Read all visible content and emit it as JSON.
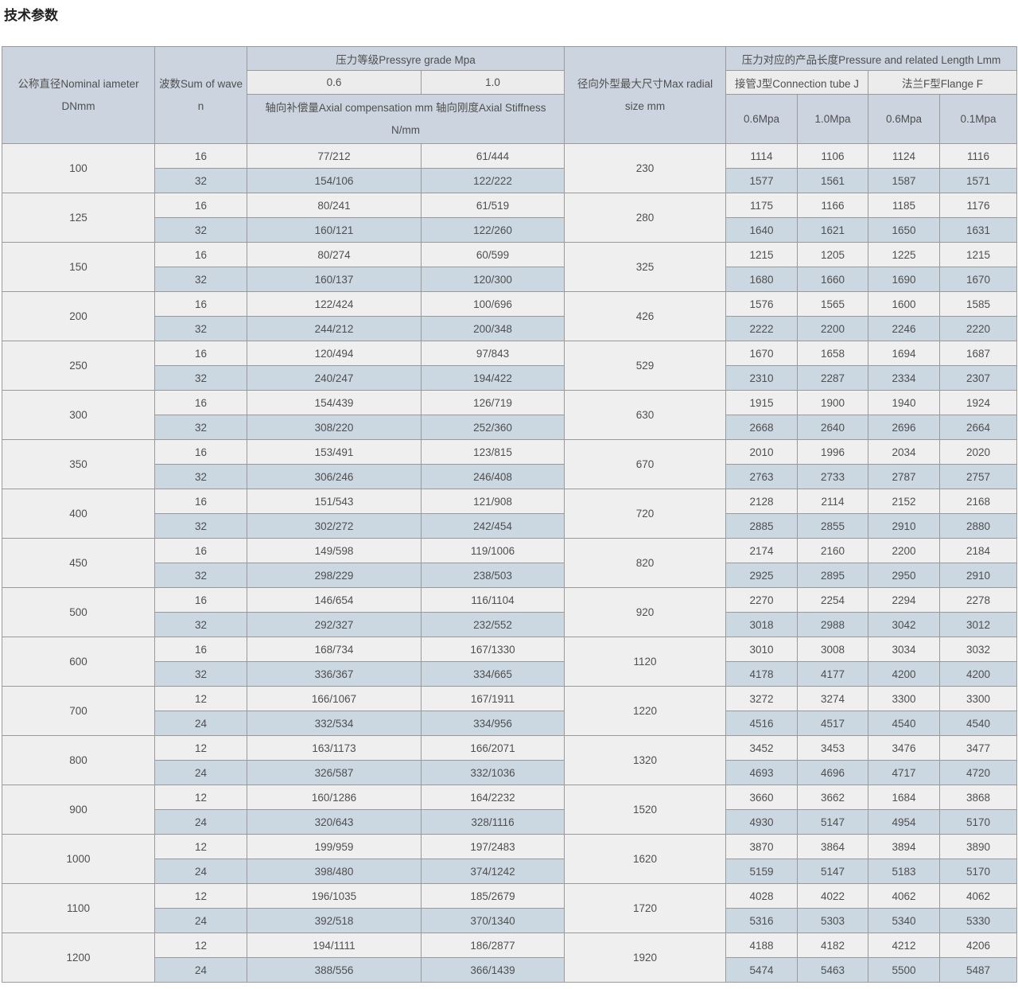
{
  "page_title": "技术参数",
  "colors": {
    "header_blue": "#ccd5df",
    "subheader_light": "#ececed",
    "row_light": "#efefef",
    "row_blue": "#cbd8e2",
    "border_gray": "#9a9a9a",
    "text_gray": "#4f4f4f",
    "title_dark": "#1f1f1f",
    "page_bg": "#ffffff"
  },
  "table": {
    "header": {
      "nominal_diameter": {
        "line1": "公称直径Nominal iameter",
        "line2": "DNmm"
      },
      "wave_count": {
        "line1": "波数Sum of wave",
        "line2": "n"
      },
      "pressure_group": {
        "title": "压力等级Pressyre grade Mpa",
        "sub_cols": [
          "0.6",
          "1.0"
        ],
        "note_line1": "轴向补偿量Axial compensation mm 轴向刚度Axial Stiffness",
        "note_line2": "N/mm"
      },
      "max_radial": {
        "line1": "径向外型最大尺寸Max radial",
        "line2": "size mm"
      },
      "length_group": {
        "title": "压力对应的产品长度Pressure and related Length Lmm",
        "sub_groups": [
          "接管J型Connection tube J",
          "法兰F型Flange F"
        ],
        "sub_cols": [
          "0.6Mpa",
          "1.0Mpa",
          "0.6Mpa",
          "0.1Mpa"
        ]
      }
    },
    "rows": [
      {
        "dn": "100",
        "radial": "230",
        "sub": [
          {
            "waves": "16",
            "axial": [
              "77/212",
              "61/444"
            ],
            "lengths": [
              "1114",
              "1106",
              "1124",
              "1116"
            ]
          },
          {
            "waves": "32",
            "axial": [
              "154/106",
              "122/222"
            ],
            "lengths": [
              "1577",
              "1561",
              "1587",
              "1571"
            ]
          }
        ]
      },
      {
        "dn": "125",
        "radial": "280",
        "sub": [
          {
            "waves": "16",
            "axial": [
              "80/241",
              "61/519"
            ],
            "lengths": [
              "1175",
              "1166",
              "1185",
              "1176"
            ]
          },
          {
            "waves": "32",
            "axial": [
              "160/121",
              "122/260"
            ],
            "lengths": [
              "1640",
              "1621",
              "1650",
              "1631"
            ]
          }
        ]
      },
      {
        "dn": "150",
        "radial": "325",
        "sub": [
          {
            "waves": "16",
            "axial": [
              "80/274",
              "60/599"
            ],
            "lengths": [
              "1215",
              "1205",
              "1225",
              "1215"
            ]
          },
          {
            "waves": "32",
            "axial": [
              "160/137",
              "120/300"
            ],
            "lengths": [
              "1680",
              "1660",
              "1690",
              "1670"
            ]
          }
        ]
      },
      {
        "dn": "200",
        "radial": "426",
        "sub": [
          {
            "waves": "16",
            "axial": [
              "122/424",
              "100/696"
            ],
            "lengths": [
              "1576",
              "1565",
              "1600",
              "1585"
            ]
          },
          {
            "waves": "32",
            "axial": [
              "244/212",
              "200/348"
            ],
            "lengths": [
              "2222",
              "2200",
              "2246",
              "2220"
            ]
          }
        ]
      },
      {
        "dn": "250",
        "radial": "529",
        "sub": [
          {
            "waves": "16",
            "axial": [
              "120/494",
              "97/843"
            ],
            "lengths": [
              "1670",
              "1658",
              "1694",
              "1687"
            ]
          },
          {
            "waves": "32",
            "axial": [
              "240/247",
              "194/422"
            ],
            "lengths": [
              "2310",
              "2287",
              "2334",
              "2307"
            ]
          }
        ]
      },
      {
        "dn": "300",
        "radial": "630",
        "sub": [
          {
            "waves": "16",
            "axial": [
              "154/439",
              "126/719"
            ],
            "lengths": [
              "1915",
              "1900",
              "1940",
              "1924"
            ]
          },
          {
            "waves": "32",
            "axial": [
              "308/220",
              "252/360"
            ],
            "lengths": [
              "2668",
              "2640",
              "2696",
              "2664"
            ]
          }
        ]
      },
      {
        "dn": "350",
        "radial": "670",
        "sub": [
          {
            "waves": "16",
            "axial": [
              "153/491",
              "123/815"
            ],
            "lengths": [
              "2010",
              "1996",
              "2034",
              "2020"
            ]
          },
          {
            "waves": "32",
            "axial": [
              "306/246",
              "246/408"
            ],
            "lengths": [
              "2763",
              "2733",
              "2787",
              "2757"
            ]
          }
        ]
      },
      {
        "dn": "400",
        "radial": "720",
        "sub": [
          {
            "waves": "16",
            "axial": [
              "151/543",
              "121/908"
            ],
            "lengths": [
              "2128",
              "2114",
              "2152",
              "2168"
            ]
          },
          {
            "waves": "32",
            "axial": [
              "302/272",
              "242/454"
            ],
            "lengths": [
              "2885",
              "2855",
              "2910",
              "2880"
            ]
          }
        ]
      },
      {
        "dn": "450",
        "radial": "820",
        "sub": [
          {
            "waves": "16",
            "axial": [
              "149/598",
              "119/1006"
            ],
            "lengths": [
              "2174",
              "2160",
              "2200",
              "2184"
            ]
          },
          {
            "waves": "32",
            "axial": [
              "298/229",
              "238/503"
            ],
            "lengths": [
              "2925",
              "2895",
              "2950",
              "2910"
            ]
          }
        ]
      },
      {
        "dn": "500",
        "radial": "920",
        "sub": [
          {
            "waves": "16",
            "axial": [
              "146/654",
              "116/1104"
            ],
            "lengths": [
              "2270",
              "2254",
              "2294",
              "2278"
            ]
          },
          {
            "waves": "32",
            "axial": [
              "292/327",
              "232/552"
            ],
            "lengths": [
              "3018",
              "2988",
              "3042",
              "3012"
            ]
          }
        ]
      },
      {
        "dn": "600",
        "radial": "1120",
        "sub": [
          {
            "waves": "16",
            "axial": [
              "168/734",
              "167/1330"
            ],
            "lengths": [
              "3010",
              "3008",
              "3034",
              "3032"
            ]
          },
          {
            "waves": "32",
            "axial": [
              "336/367",
              "334/665"
            ],
            "lengths": [
              "4178",
              "4177",
              "4200",
              "4200"
            ]
          }
        ]
      },
      {
        "dn": "700",
        "radial": "1220",
        "sub": [
          {
            "waves": "12",
            "axial": [
              "166/1067",
              "167/1911"
            ],
            "lengths": [
              "3272",
              "3274",
              "3300",
              "3300"
            ]
          },
          {
            "waves": "24",
            "axial": [
              "332/534",
              "334/956"
            ],
            "lengths": [
              "4516",
              "4517",
              "4540",
              "4540"
            ]
          }
        ]
      },
      {
        "dn": "800",
        "radial": "1320",
        "sub": [
          {
            "waves": "12",
            "axial": [
              "163/1173",
              "166/2071"
            ],
            "lengths": [
              "3452",
              "3453",
              "3476",
              "3477"
            ]
          },
          {
            "waves": "24",
            "axial": [
              "326/587",
              "332/1036"
            ],
            "lengths": [
              "4693",
              "4696",
              "4717",
              "4720"
            ]
          }
        ]
      },
      {
        "dn": "900",
        "radial": "1520",
        "sub": [
          {
            "waves": "12",
            "axial": [
              "160/1286",
              "164/2232"
            ],
            "lengths": [
              "3660",
              "3662",
              "1684",
              "3868"
            ]
          },
          {
            "waves": "24",
            "axial": [
              "320/643",
              "328/1116"
            ],
            "lengths": [
              "4930",
              "5147",
              "4954",
              "5170"
            ]
          }
        ]
      },
      {
        "dn": "1000",
        "radial": "1620",
        "sub": [
          {
            "waves": "12",
            "axial": [
              "199/959",
              "197/2483"
            ],
            "lengths": [
              "3870",
              "3864",
              "3894",
              "3890"
            ]
          },
          {
            "waves": "24",
            "axial": [
              "398/480",
              "374/1242"
            ],
            "lengths": [
              "5159",
              "5147",
              "5183",
              "5170"
            ]
          }
        ]
      },
      {
        "dn": "1100",
        "radial": "1720",
        "sub": [
          {
            "waves": "12",
            "axial": [
              "196/1035",
              "185/2679"
            ],
            "lengths": [
              "4028",
              "4022",
              "4062",
              "4062"
            ]
          },
          {
            "waves": "24",
            "axial": [
              "392/518",
              "370/1340"
            ],
            "lengths": [
              "5316",
              "5303",
              "5340",
              "5330"
            ]
          }
        ]
      },
      {
        "dn": "1200",
        "radial": "1920",
        "sub": [
          {
            "waves": "12",
            "axial": [
              "194/1111",
              "186/2877"
            ],
            "lengths": [
              "4188",
              "4182",
              "4212",
              "4206"
            ]
          },
          {
            "waves": "24",
            "axial": [
              "388/556",
              "366/1439"
            ],
            "lengths": [
              "5474",
              "5463",
              "5500",
              "5487"
            ]
          }
        ]
      }
    ]
  }
}
